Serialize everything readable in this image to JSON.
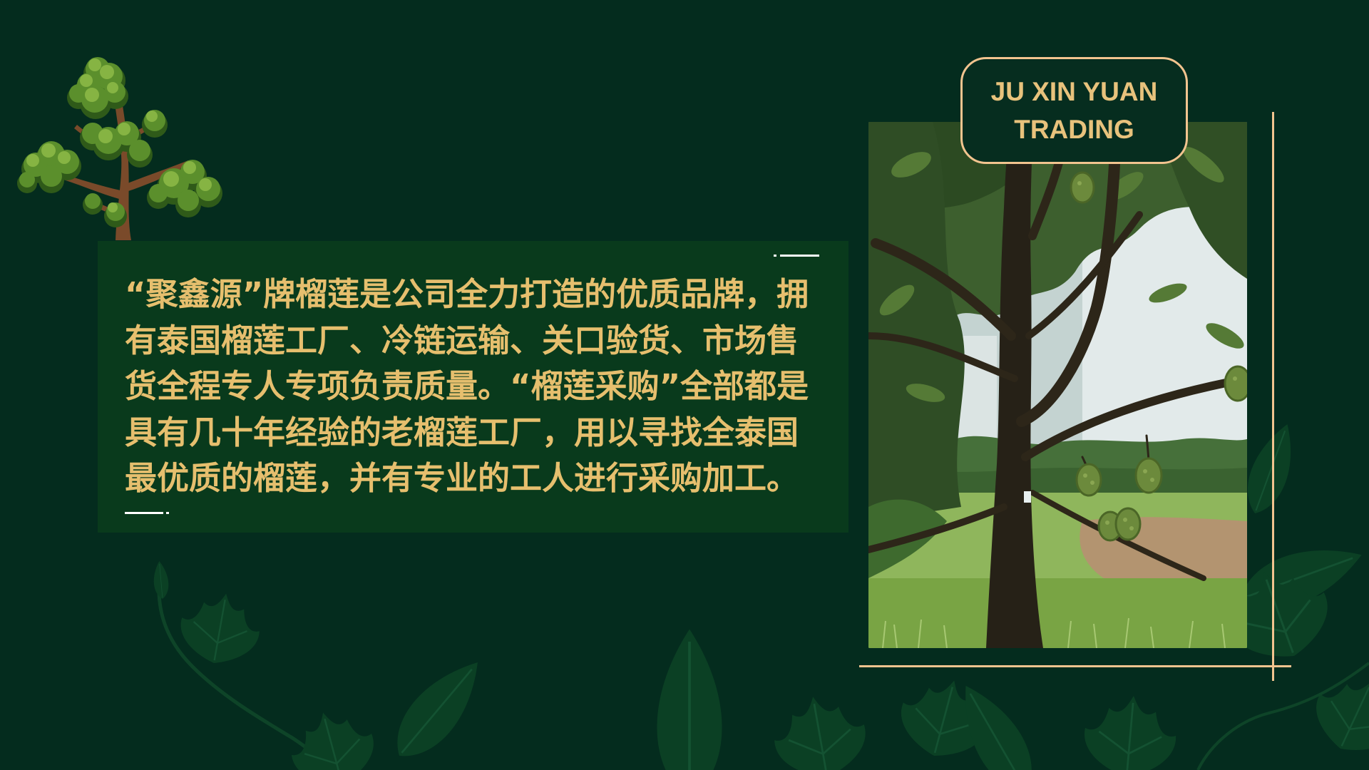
{
  "brand": {
    "line1": "JU XIN YUAN",
    "line2": "TRADING"
  },
  "description": {
    "lines": [
      "“聚鑫源”牌榴莲是公司全力打造的优质品牌，拥",
      "有泰国榴莲工厂、冷链运输、关口验货、市场售",
      "货全程专人专项负责质量。“榴莲采购”全部都是",
      "具有几十年经验的老榴莲工厂，用以寻找全泰国",
      "最优质的榴莲，并有专业的工人进行采购加工。"
    ]
  },
  "images": {
    "top_left": "tree-illustration",
    "right": "durian-tree-photo",
    "background": "leaf-decoration"
  },
  "colors": {
    "background": "#042c1e",
    "panel": "#093a1c",
    "text_gold": "#e6bf6e",
    "frame_peach": "#f2c48f",
    "dash_white": "#ffffff"
  }
}
